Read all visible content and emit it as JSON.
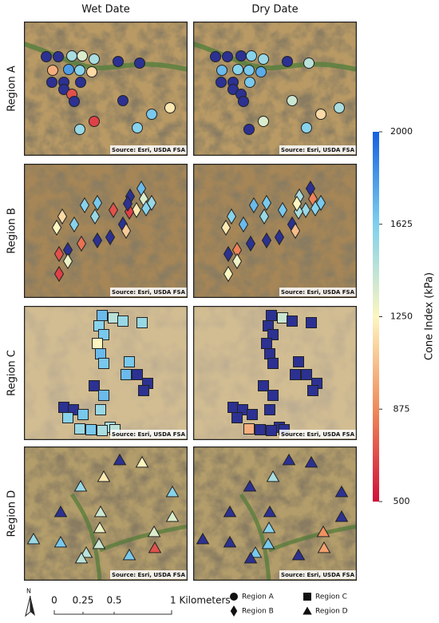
{
  "columns": [
    "Wet Date",
    "Dry Date"
  ],
  "source": "Source: Esri, USDA FSA",
  "regions": [
    {
      "label": "Region A",
      "shape": "circle",
      "wet": [
        2200,
        2200,
        1500,
        1350,
        1500,
        2200,
        2200,
        1000,
        1800,
        1600,
        1150,
        2200,
        2200,
        2200,
        2200,
        700,
        2200,
        2200,
        1200,
        1650,
        650,
        1550,
        1600
      ],
      "dry": [
        2200,
        2200,
        2200,
        1600,
        1550,
        2200,
        1450,
        1700,
        1600,
        1650,
        1750,
        2200,
        2200,
        1650,
        2200,
        2200,
        2200,
        1400,
        1500,
        1150,
        1350,
        2200,
        1600
      ]
    },
    {
      "label": "Region B",
      "shape": "diamond",
      "wet": [
        1700,
        2200,
        1350,
        1550,
        1600,
        1200,
        650,
        1600,
        1650,
        700,
        2200,
        1150,
        1250,
        1600,
        1550,
        2200,
        2200,
        2200,
        800,
        2200,
        700,
        650,
        1300,
        1100
      ],
      "dry": [
        2200,
        1500,
        850,
        1650,
        1600,
        1550,
        1500,
        1700,
        1650,
        1650,
        1250,
        1600,
        1200,
        1700,
        1550,
        2200,
        2200,
        2200,
        2200,
        850,
        2200,
        1250,
        1300,
        1050
      ]
    },
    {
      "label": "Region C",
      "shape": "square",
      "wet": [
        1700,
        1450,
        1550,
        1550,
        1600,
        1650,
        1250,
        1700,
        1650,
        1650,
        1700,
        2200,
        2200,
        2200,
        1700,
        2200,
        2200,
        2200,
        1600,
        1650,
        1550,
        1500,
        1500,
        1450,
        1650,
        1550
      ],
      "dry": [
        2200,
        1400,
        2200,
        2200,
        2200,
        2200,
        2200,
        2200,
        2200,
        2200,
        2200,
        2200,
        2200,
        2200,
        2200,
        2200,
        2200,
        2200,
        2200,
        2200,
        2200,
        2200,
        2200,
        2200,
        2200,
        1000
      ]
    },
    {
      "label": "Region D",
      "shape": "triangle",
      "wet": [
        2200,
        1250,
        1550,
        1200,
        1600,
        2200,
        1400,
        1300,
        1350,
        1550,
        1650,
        1400,
        1450,
        1650,
        700,
        1350,
        1450
      ],
      "dry": [
        2200,
        2200,
        2200,
        1500,
        2200,
        2200,
        2200,
        1600,
        900,
        2200,
        2200,
        1650,
        1650,
        2200,
        950,
        2200,
        2200
      ]
    }
  ],
  "colorbar": {
    "label": "Cone Index (kPa)",
    "lim": [
      500,
      2000
    ],
    "ticks": [
      500,
      875,
      1250,
      1625,
      2000
    ],
    "colors": [
      "#d0103a",
      "#f08a5a",
      "#fdf6c0",
      "#7fd0ee",
      "#1460e0"
    ],
    "over_color": "#2c3192"
  },
  "scale_bar": {
    "labels": [
      "0",
      "0.25",
      "0.5",
      "1 Kilometers"
    ]
  },
  "north": "N",
  "legend": [
    {
      "label": "Region A",
      "shape": "circle"
    },
    {
      "label": "Region B",
      "shape": "diamond"
    },
    {
      "label": "Region C",
      "shape": "square"
    },
    {
      "label": "Region D",
      "shape": "triangle"
    }
  ]
}
